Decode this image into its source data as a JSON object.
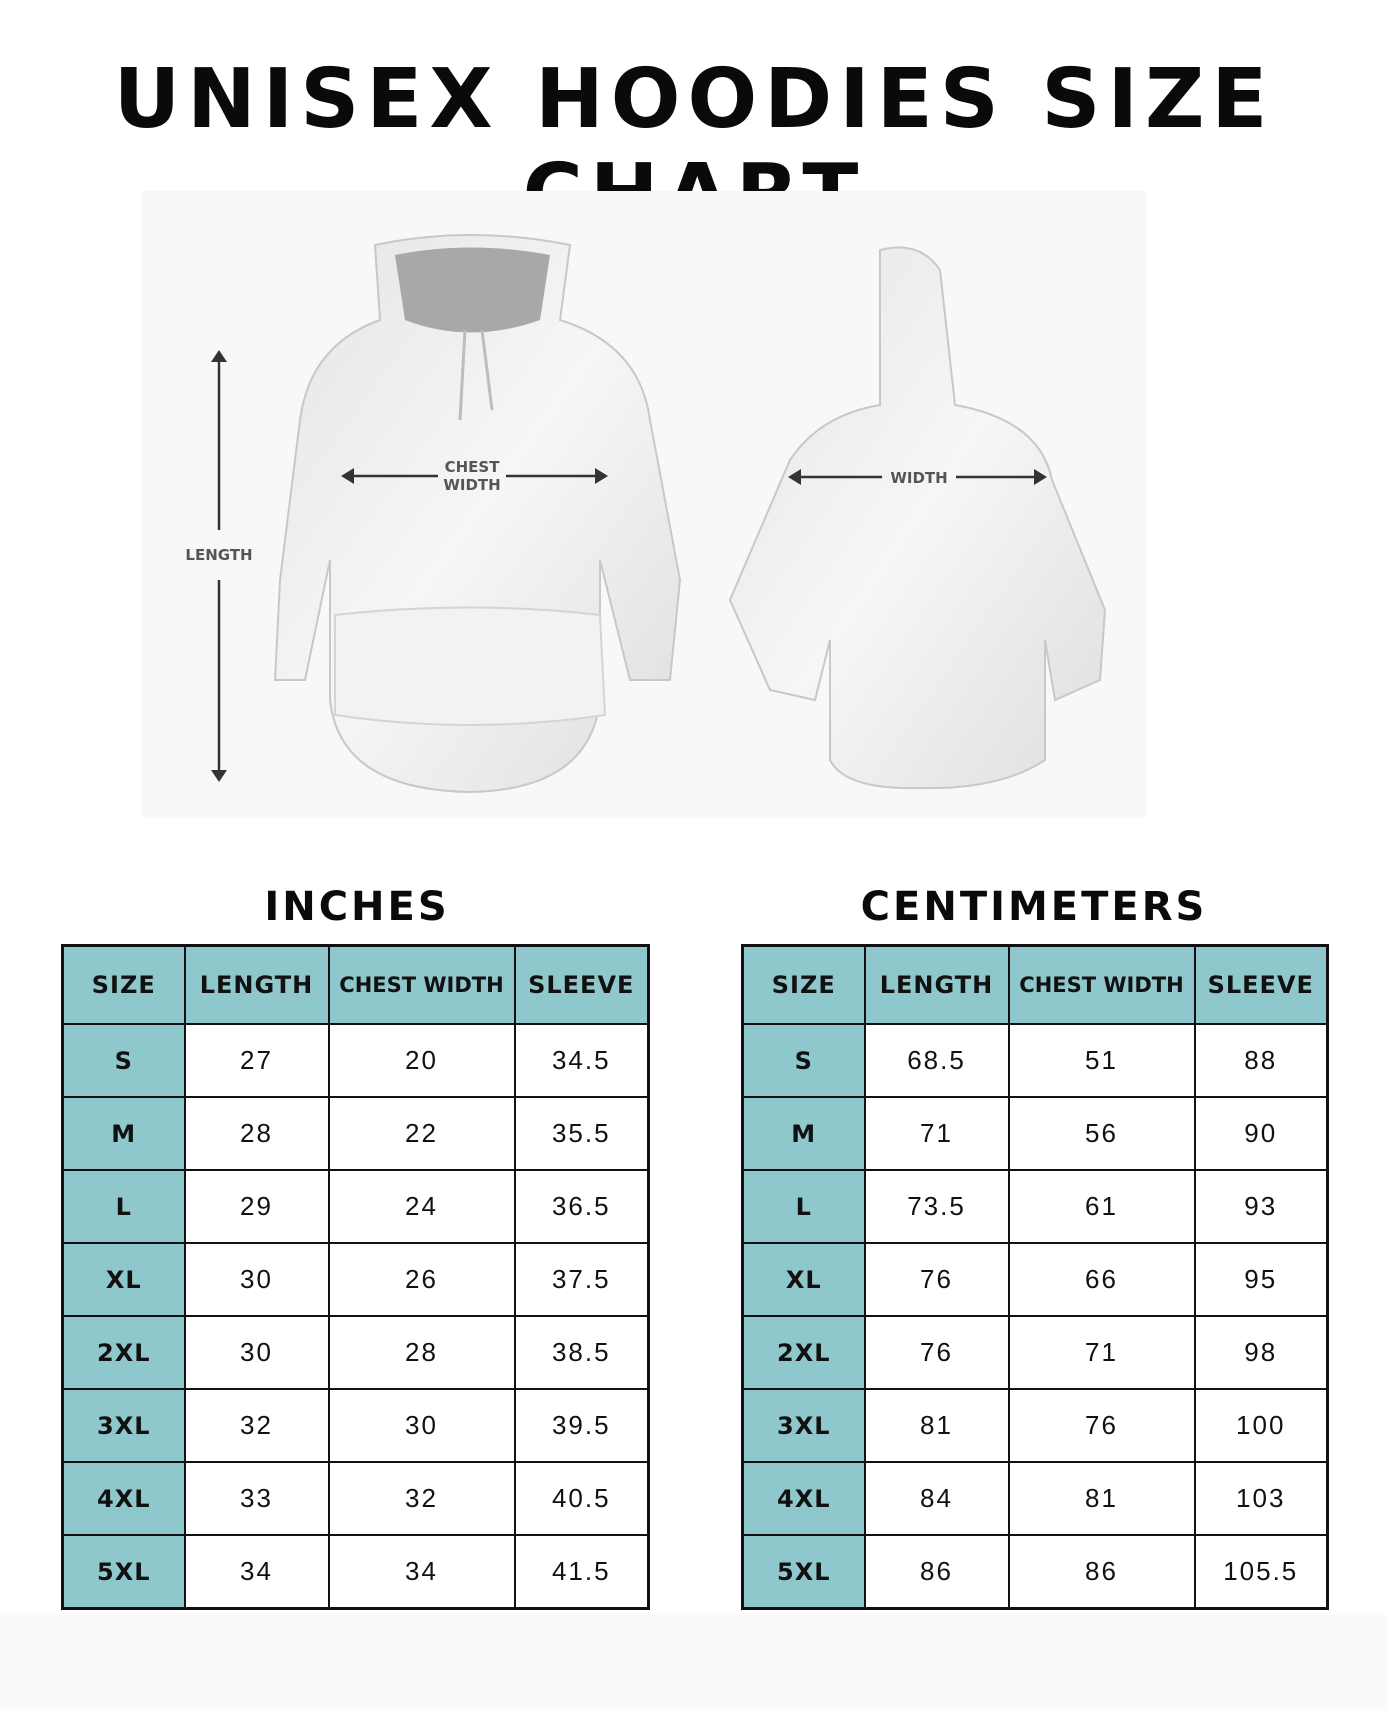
{
  "title": "UNISEX HOODIES SIZE CHART",
  "diagram": {
    "length_label": "LENGTH",
    "chest_label_line1": "CHEST",
    "chest_label_line2": "WIDTH",
    "width_label": "WIDTH"
  },
  "colors": {
    "header_fill": "#8fc8cc",
    "border": "#111111"
  },
  "inches": {
    "title": "INCHES",
    "headers": [
      "SIZE",
      "LENGTH",
      "CHEST WIDTH",
      "SLEEVE"
    ],
    "rows": [
      [
        "S",
        "27",
        "20",
        "34.5"
      ],
      [
        "M",
        "28",
        "22",
        "35.5"
      ],
      [
        "L",
        "29",
        "24",
        "36.5"
      ],
      [
        "XL",
        "30",
        "26",
        "37.5"
      ],
      [
        "2XL",
        "30",
        "28",
        "38.5"
      ],
      [
        "3XL",
        "32",
        "30",
        "39.5"
      ],
      [
        "4XL",
        "33",
        "32",
        "40.5"
      ],
      [
        "5XL",
        "34",
        "34",
        "41.5"
      ]
    ]
  },
  "centimeters": {
    "title": "CENTIMETERS",
    "headers": [
      "SIZE",
      "LENGTH",
      "CHEST WIDTH",
      "SLEEVE"
    ],
    "rows": [
      [
        "S",
        "68.5",
        "51",
        "88"
      ],
      [
        "M",
        "71",
        "56",
        "90"
      ],
      [
        "L",
        "73.5",
        "61",
        "93"
      ],
      [
        "XL",
        "76",
        "66",
        "95"
      ],
      [
        "2XL",
        "76",
        "71",
        "98"
      ],
      [
        "3XL",
        "81",
        "76",
        "100"
      ],
      [
        "4XL",
        "84",
        "81",
        "103"
      ],
      [
        "5XL",
        "86",
        "86",
        "105.5"
      ]
    ]
  }
}
